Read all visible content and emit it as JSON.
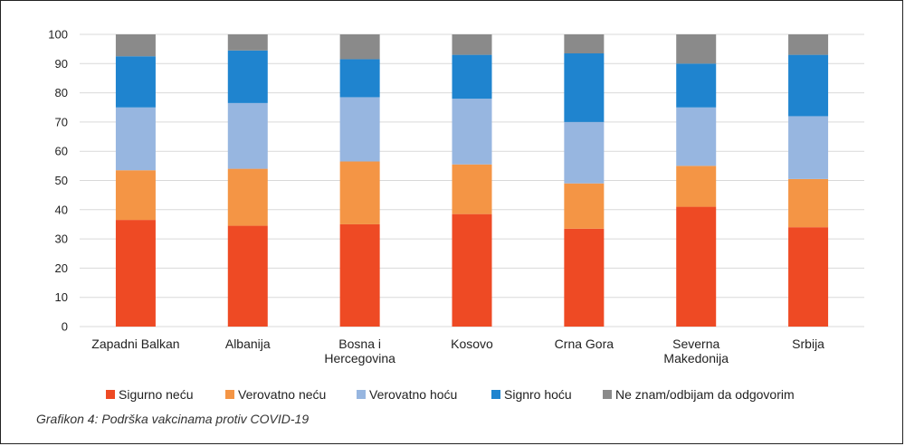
{
  "chart_data": {
    "type": "bar",
    "stacked": true,
    "categories": [
      [
        "Zapadni Balkan"
      ],
      [
        "Albanija"
      ],
      [
        "Bosna i",
        "Hercegovina"
      ],
      [
        "Kosovo"
      ],
      [
        "Crna Gora"
      ],
      [
        "Severna",
        "Makedonija"
      ],
      [
        "Srbija"
      ]
    ],
    "series": [
      {
        "name": "Sigurno neću",
        "color": "#ee4a24",
        "values": [
          36.5,
          34.5,
          35,
          38.5,
          33.5,
          41,
          34
        ]
      },
      {
        "name": "Verovatno neću",
        "color": "#f49545",
        "values": [
          17,
          19.5,
          21.5,
          17,
          15.5,
          14,
          16.5
        ]
      },
      {
        "name": "Verovatno hoću",
        "color": "#97b6e0",
        "values": [
          21.5,
          22.5,
          22,
          22.5,
          21,
          20,
          21.5
        ]
      },
      {
        "name": "Signro hoću",
        "color": "#1f84cf",
        "values": [
          17.5,
          18,
          13,
          15,
          23.5,
          15,
          21
        ]
      },
      {
        "name": "Ne znam/odbijam da odgovorim",
        "color": "#8a8a8a",
        "values": [
          7.5,
          5.5,
          8.5,
          7,
          6.5,
          10,
          7
        ]
      }
    ],
    "ylim": [
      0,
      100
    ],
    "yticks": [
      "0",
      "10",
      "20",
      "30",
      "40",
      "50",
      "60",
      "70",
      "80",
      "90",
      "100"
    ],
    "grid": true,
    "legend": "bottom"
  },
  "caption": "Grafikon 4: Podrška vakcinama protiv COVID-19"
}
